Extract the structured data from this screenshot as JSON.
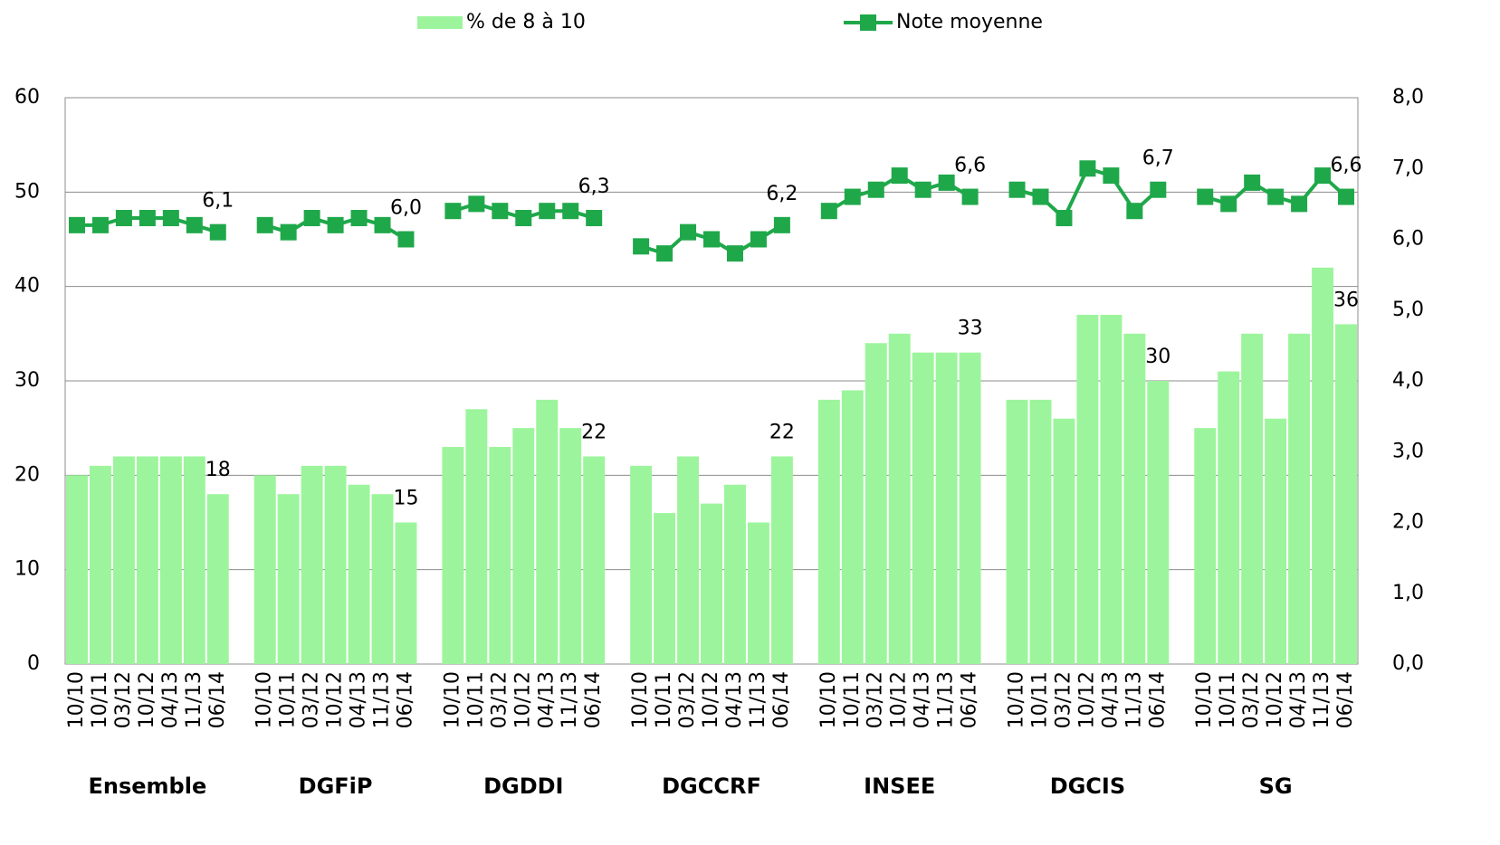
{
  "chart_data": {
    "type": "bar-line",
    "categories": [
      "10/10",
      "10/11",
      "03/12",
      "10/12",
      "04/13",
      "11/13",
      "06/14",
      null,
      "10/10",
      "10/11",
      "03/12",
      "10/12",
      "04/13",
      "11/13",
      "06/14",
      null,
      "10/10",
      "10/11",
      "03/12",
      "10/12",
      "04/13",
      "11/13",
      "06/14",
      null,
      "10/10",
      "10/11",
      "03/12",
      "10/12",
      "04/13",
      "11/13",
      "06/14",
      null,
      "10/10",
      "10/11",
      "03/12",
      "10/12",
      "04/13",
      "11/13",
      "06/14",
      null,
      "10/10",
      "10/11",
      "03/12",
      "10/12",
      "04/13",
      "11/13",
      "06/14",
      null,
      "10/10",
      "10/11",
      "03/12",
      "10/12",
      "04/13",
      "11/13",
      "06/14"
    ],
    "groups": [
      "Ensemble",
      "DGFiP",
      "DGDDI",
      "DGCCRF",
      "INSEE",
      "DGCIS",
      "SG"
    ],
    "series": [
      {
        "name": "% de 8 à 10",
        "color": "#9cf59c",
        "axis": "y",
        "values": [
          20,
          21,
          22,
          22,
          22,
          22,
          18,
          null,
          20,
          18,
          21,
          21,
          19,
          18,
          15,
          null,
          23,
          27,
          23,
          25,
          28,
          25,
          22,
          null,
          21,
          16,
          22,
          17,
          19,
          15,
          22,
          null,
          28,
          29,
          34,
          35,
          33,
          33,
          33,
          null,
          28,
          28,
          26,
          37,
          37,
          35,
          30,
          null,
          25,
          31,
          35,
          26,
          35,
          42,
          36
        ],
        "value_labels": [
          null,
          null,
          null,
          null,
          null,
          null,
          "18",
          null,
          null,
          null,
          null,
          null,
          null,
          null,
          "15",
          null,
          null,
          null,
          null,
          null,
          null,
          null,
          "22",
          null,
          null,
          null,
          null,
          null,
          null,
          null,
          "22",
          null,
          null,
          null,
          null,
          null,
          null,
          null,
          "33",
          null,
          null,
          null,
          null,
          null,
          null,
          null,
          "30",
          null,
          null,
          null,
          null,
          null,
          null,
          null,
          "36"
        ]
      },
      {
        "name": "Note moyenne",
        "color": "#1fa84a",
        "axis": "y2",
        "values": [
          6.2,
          6.2,
          6.3,
          6.3,
          6.3,
          6.2,
          6.1,
          null,
          6.2,
          6.1,
          6.3,
          6.2,
          6.3,
          6.2,
          6.0,
          null,
          6.4,
          6.5,
          6.4,
          6.3,
          6.4,
          6.4,
          6.3,
          null,
          5.9,
          5.8,
          6.1,
          6.0,
          5.8,
          6.0,
          6.2,
          null,
          6.4,
          6.6,
          6.7,
          6.9,
          6.7,
          6.8,
          6.6,
          null,
          6.7,
          6.6,
          6.3,
          7.0,
          6.9,
          6.4,
          6.7,
          null,
          6.6,
          6.5,
          6.8,
          6.6,
          6.5,
          6.9,
          6.6
        ],
        "value_labels": [
          null,
          null,
          null,
          null,
          null,
          null,
          "6,1",
          null,
          null,
          null,
          null,
          null,
          null,
          null,
          "6,0",
          null,
          null,
          null,
          null,
          null,
          null,
          null,
          "6,3",
          null,
          null,
          null,
          null,
          null,
          null,
          null,
          "6,2",
          null,
          null,
          null,
          null,
          null,
          null,
          null,
          "6,6",
          null,
          null,
          null,
          null,
          null,
          null,
          null,
          "6,7",
          null,
          null,
          null,
          null,
          null,
          null,
          null,
          "6,6"
        ]
      }
    ],
    "ylim": [
      0,
      60
    ],
    "yticks": [
      0,
      10,
      20,
      30,
      40,
      50,
      60
    ],
    "y2lim": [
      0,
      8
    ],
    "y2ticks": [
      {
        "value": 0,
        "label": "0,0"
      },
      {
        "value": 1,
        "label": "1,0"
      },
      {
        "value": 2,
        "label": "2,0"
      },
      {
        "value": 3,
        "label": "3,0"
      },
      {
        "value": 4,
        "label": "4,0"
      },
      {
        "value": 5,
        "label": "5,0"
      },
      {
        "value": 6,
        "label": "6,0"
      },
      {
        "value": 7,
        "label": "7,0"
      },
      {
        "value": 8,
        "label": "8,0"
      }
    ],
    "grid": true,
    "legend": "top"
  }
}
